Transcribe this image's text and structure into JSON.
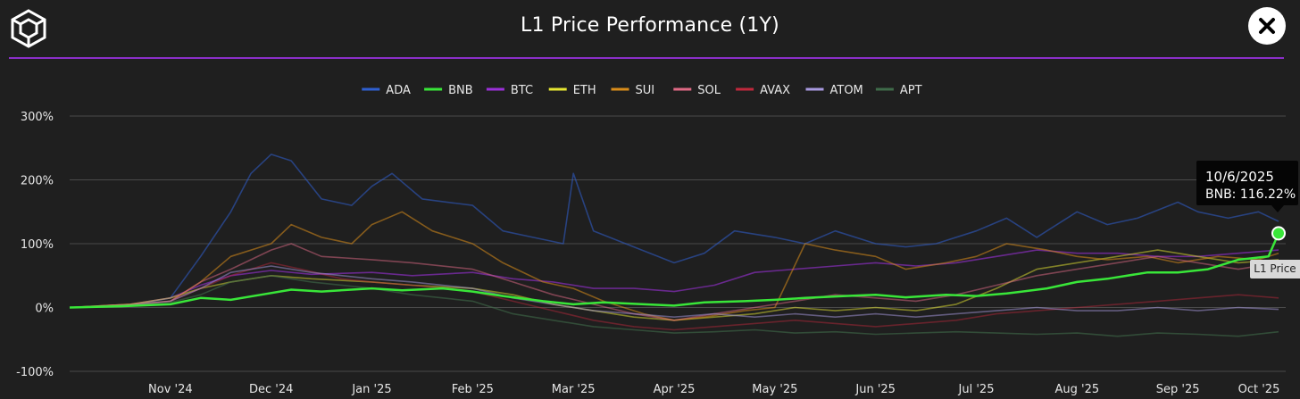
{
  "header": {
    "title": "L1 Price Performance (1Y)",
    "logo_icon": "cube-logo-icon",
    "close_icon": "close-icon"
  },
  "tooltip": {
    "date": "10/6/2025",
    "value": "BNB: 116.22%"
  },
  "series_tag": "L1 Price",
  "colors": {
    "background": "#1f1f1f",
    "divider": "#8b2fc9",
    "grid": "#4a4a4a"
  },
  "chart_data": {
    "type": "line",
    "title": "L1 Price Performance (1Y)",
    "xlabel": "",
    "ylabel": "",
    "ylim": [
      -100,
      300
    ],
    "yticks": [
      "300%",
      "200%",
      "100%",
      "0%",
      "-100%"
    ],
    "ytick_values": [
      300,
      200,
      100,
      0,
      -100
    ],
    "grid": true,
    "legend_position": "top-center",
    "x_domain": [
      0,
      12
    ],
    "x_ticks": [
      {
        "label": "Nov '24",
        "x": 1
      },
      {
        "label": "Dec '24",
        "x": 2
      },
      {
        "label": "Jan '25",
        "x": 3
      },
      {
        "label": "Feb '25",
        "x": 4
      },
      {
        "label": "Mar '25",
        "x": 5
      },
      {
        "label": "Apr '25",
        "x": 6
      },
      {
        "label": "May '25",
        "x": 7
      },
      {
        "label": "Jun '25",
        "x": 8
      },
      {
        "label": "Jul '25",
        "x": 9
      },
      {
        "label": "Aug '25",
        "x": 10
      },
      {
        "label": "Sep '25",
        "x": 11
      },
      {
        "label": "Oct '25",
        "x": 12
      }
    ],
    "series": [
      {
        "name": "ADA",
        "color": "#2f5fd0",
        "opacity": 0.55,
        "points": [
          [
            0,
            0
          ],
          [
            0.6,
            3
          ],
          [
            1,
            15
          ],
          [
            1.3,
            80
          ],
          [
            1.6,
            150
          ],
          [
            1.8,
            210
          ],
          [
            2,
            240
          ],
          [
            2.2,
            230
          ],
          [
            2.5,
            170
          ],
          [
            2.8,
            160
          ],
          [
            3,
            190
          ],
          [
            3.2,
            210
          ],
          [
            3.5,
            170
          ],
          [
            4,
            160
          ],
          [
            4.3,
            120
          ],
          [
            4.6,
            110
          ],
          [
            4.9,
            100
          ],
          [
            5,
            210
          ],
          [
            5.2,
            120
          ],
          [
            5.6,
            95
          ],
          [
            6,
            70
          ],
          [
            6.3,
            85
          ],
          [
            6.6,
            120
          ],
          [
            7,
            110
          ],
          [
            7.3,
            100
          ],
          [
            7.6,
            120
          ],
          [
            8,
            100
          ],
          [
            8.3,
            95
          ],
          [
            8.6,
            100
          ],
          [
            9,
            120
          ],
          [
            9.3,
            140
          ],
          [
            9.6,
            110
          ],
          [
            10,
            150
          ],
          [
            10.3,
            130
          ],
          [
            10.6,
            140
          ],
          [
            11,
            165
          ],
          [
            11.2,
            150
          ],
          [
            11.5,
            140
          ],
          [
            11.8,
            150
          ],
          [
            12,
            135
          ]
        ]
      },
      {
        "name": "BNB",
        "color": "#39e639",
        "opacity": 1,
        "width": 2.5,
        "points": [
          [
            0,
            0
          ],
          [
            0.5,
            2
          ],
          [
            1,
            5
          ],
          [
            1.3,
            15
          ],
          [
            1.6,
            12
          ],
          [
            1.9,
            20
          ],
          [
            2.2,
            28
          ],
          [
            2.5,
            25
          ],
          [
            3,
            30
          ],
          [
            3.3,
            27
          ],
          [
            3.7,
            30
          ],
          [
            4,
            25
          ],
          [
            4.3,
            18
          ],
          [
            4.7,
            10
          ],
          [
            5,
            5
          ],
          [
            5.3,
            8
          ],
          [
            5.7,
            5
          ],
          [
            6,
            3
          ],
          [
            6.3,
            8
          ],
          [
            6.7,
            10
          ],
          [
            7,
            12
          ],
          [
            7.3,
            15
          ],
          [
            7.7,
            18
          ],
          [
            8,
            20
          ],
          [
            8.3,
            16
          ],
          [
            8.7,
            20
          ],
          [
            9,
            18
          ],
          [
            9.3,
            22
          ],
          [
            9.7,
            30
          ],
          [
            10,
            40
          ],
          [
            10.3,
            45
          ],
          [
            10.7,
            55
          ],
          [
            11,
            55
          ],
          [
            11.3,
            60
          ],
          [
            11.6,
            75
          ],
          [
            11.9,
            80
          ],
          [
            12,
            116.22
          ]
        ]
      },
      {
        "name": "BTC",
        "color": "#9b30d9",
        "opacity": 0.6,
        "points": [
          [
            0,
            0
          ],
          [
            0.6,
            5
          ],
          [
            1,
            15
          ],
          [
            1.3,
            35
          ],
          [
            1.6,
            50
          ],
          [
            2,
            58
          ],
          [
            2.4,
            52
          ],
          [
            3,
            55
          ],
          [
            3.4,
            50
          ],
          [
            4,
            55
          ],
          [
            4.4,
            45
          ],
          [
            4.8,
            40
          ],
          [
            5.2,
            30
          ],
          [
            5.6,
            30
          ],
          [
            6,
            25
          ],
          [
            6.4,
            35
          ],
          [
            6.8,
            55
          ],
          [
            7.2,
            60
          ],
          [
            7.6,
            65
          ],
          [
            8,
            70
          ],
          [
            8.4,
            65
          ],
          [
            8.8,
            70
          ],
          [
            9.2,
            80
          ],
          [
            9.6,
            90
          ],
          [
            10,
            85
          ],
          [
            10.4,
            85
          ],
          [
            10.8,
            80
          ],
          [
            11.2,
            80
          ],
          [
            11.6,
            85
          ],
          [
            12,
            90
          ]
        ]
      },
      {
        "name": "ETH",
        "color": "#e6e632",
        "opacity": 0.5,
        "points": [
          [
            0,
            0
          ],
          [
            0.6,
            5
          ],
          [
            1,
            15
          ],
          [
            1.3,
            30
          ],
          [
            1.6,
            40
          ],
          [
            2,
            50
          ],
          [
            2.4,
            45
          ],
          [
            3,
            40
          ],
          [
            3.4,
            35
          ],
          [
            4,
            30
          ],
          [
            4.4,
            20
          ],
          [
            4.8,
            5
          ],
          [
            5.2,
            -5
          ],
          [
            5.6,
            -15
          ],
          [
            6,
            -20
          ],
          [
            6.4,
            -15
          ],
          [
            6.8,
            -10
          ],
          [
            7.2,
            0
          ],
          [
            7.6,
            -5
          ],
          [
            8,
            0
          ],
          [
            8.4,
            -5
          ],
          [
            8.8,
            5
          ],
          [
            9.2,
            30
          ],
          [
            9.6,
            60
          ],
          [
            10,
            70
          ],
          [
            10.4,
            80
          ],
          [
            10.8,
            90
          ],
          [
            11.2,
            80
          ],
          [
            11.6,
            70
          ],
          [
            12,
            75
          ]
        ]
      },
      {
        "name": "SUI",
        "color": "#d98c1a",
        "opacity": 0.55,
        "points": [
          [
            0,
            0
          ],
          [
            0.6,
            5
          ],
          [
            1,
            10
          ],
          [
            1.3,
            40
          ],
          [
            1.6,
            80
          ],
          [
            2,
            100
          ],
          [
            2.2,
            130
          ],
          [
            2.5,
            110
          ],
          [
            2.8,
            100
          ],
          [
            3,
            130
          ],
          [
            3.3,
            150
          ],
          [
            3.6,
            120
          ],
          [
            4,
            100
          ],
          [
            4.3,
            70
          ],
          [
            4.7,
            40
          ],
          [
            5,
            30
          ],
          [
            5.3,
            10
          ],
          [
            5.7,
            -10
          ],
          [
            6,
            -20
          ],
          [
            6.3,
            -15
          ],
          [
            6.7,
            -5
          ],
          [
            7,
            0
          ],
          [
            7.3,
            100
          ],
          [
            7.6,
            90
          ],
          [
            8,
            80
          ],
          [
            8.3,
            60
          ],
          [
            8.7,
            70
          ],
          [
            9,
            80
          ],
          [
            9.3,
            100
          ],
          [
            9.7,
            90
          ],
          [
            10,
            80
          ],
          [
            10.3,
            75
          ],
          [
            10.7,
            80
          ],
          [
            11,
            70
          ],
          [
            11.4,
            80
          ],
          [
            11.8,
            75
          ],
          [
            12,
            85
          ]
        ]
      },
      {
        "name": "SOL",
        "color": "#e06a85",
        "opacity": 0.5,
        "points": [
          [
            0,
            0
          ],
          [
            0.6,
            3
          ],
          [
            1,
            10
          ],
          [
            1.3,
            40
          ],
          [
            1.6,
            60
          ],
          [
            2,
            90
          ],
          [
            2.2,
            100
          ],
          [
            2.5,
            80
          ],
          [
            3,
            75
          ],
          [
            3.4,
            70
          ],
          [
            4,
            60
          ],
          [
            4.4,
            40
          ],
          [
            4.8,
            20
          ],
          [
            5.2,
            5
          ],
          [
            5.6,
            -10
          ],
          [
            6,
            -20
          ],
          [
            6.4,
            -10
          ],
          [
            6.8,
            0
          ],
          [
            7.2,
            10
          ],
          [
            7.6,
            20
          ],
          [
            8,
            15
          ],
          [
            8.4,
            10
          ],
          [
            8.8,
            20
          ],
          [
            9.2,
            35
          ],
          [
            9.6,
            50
          ],
          [
            10,
            60
          ],
          [
            10.4,
            70
          ],
          [
            10.8,
            80
          ],
          [
            11.2,
            70
          ],
          [
            11.6,
            60
          ],
          [
            12,
            70
          ]
        ]
      },
      {
        "name": "AVAX",
        "color": "#c0283c",
        "opacity": 0.45,
        "points": [
          [
            0,
            0
          ],
          [
            0.6,
            3
          ],
          [
            1,
            10
          ],
          [
            1.3,
            30
          ],
          [
            1.6,
            50
          ],
          [
            2,
            70
          ],
          [
            2.3,
            60
          ],
          [
            2.7,
            45
          ],
          [
            3,
            40
          ],
          [
            3.4,
            35
          ],
          [
            4,
            25
          ],
          [
            4.4,
            10
          ],
          [
            4.8,
            -5
          ],
          [
            5.2,
            -20
          ],
          [
            5.6,
            -30
          ],
          [
            6,
            -35
          ],
          [
            6.4,
            -30
          ],
          [
            6.8,
            -25
          ],
          [
            7.2,
            -20
          ],
          [
            7.6,
            -25
          ],
          [
            8,
            -30
          ],
          [
            8.4,
            -25
          ],
          [
            8.8,
            -20
          ],
          [
            9.2,
            -10
          ],
          [
            9.6,
            -5
          ],
          [
            10,
            0
          ],
          [
            10.4,
            5
          ],
          [
            10.8,
            10
          ],
          [
            11.2,
            15
          ],
          [
            11.6,
            20
          ],
          [
            12,
            15
          ]
        ]
      },
      {
        "name": "ATOM",
        "color": "#a89ae0",
        "opacity": 0.5,
        "points": [
          [
            0,
            0
          ],
          [
            0.6,
            4
          ],
          [
            1,
            10
          ],
          [
            1.3,
            30
          ],
          [
            1.6,
            55
          ],
          [
            2,
            65
          ],
          [
            2.4,
            55
          ],
          [
            3,
            45
          ],
          [
            3.4,
            40
          ],
          [
            4,
            30
          ],
          [
            4.4,
            15
          ],
          [
            4.8,
            5
          ],
          [
            5.2,
            -5
          ],
          [
            5.6,
            -10
          ],
          [
            6,
            -15
          ],
          [
            6.4,
            -10
          ],
          [
            6.8,
            -15
          ],
          [
            7.2,
            -10
          ],
          [
            7.6,
            -15
          ],
          [
            8,
            -10
          ],
          [
            8.4,
            -15
          ],
          [
            8.8,
            -10
          ],
          [
            9.2,
            -5
          ],
          [
            9.6,
            0
          ],
          [
            10,
            -5
          ],
          [
            10.4,
            -5
          ],
          [
            10.8,
            0
          ],
          [
            11.2,
            -5
          ],
          [
            11.6,
            0
          ],
          [
            12,
            -3
          ]
        ]
      },
      {
        "name": "APT",
        "color": "#3f6b4a",
        "opacity": 0.6,
        "points": [
          [
            0,
            0
          ],
          [
            0.6,
            3
          ],
          [
            1,
            8
          ],
          [
            1.3,
            20
          ],
          [
            1.6,
            40
          ],
          [
            2,
            50
          ],
          [
            2.4,
            40
          ],
          [
            3,
            30
          ],
          [
            3.4,
            20
          ],
          [
            4,
            10
          ],
          [
            4.4,
            -10
          ],
          [
            4.8,
            -20
          ],
          [
            5.2,
            -30
          ],
          [
            5.6,
            -35
          ],
          [
            6,
            -40
          ],
          [
            6.4,
            -38
          ],
          [
            6.8,
            -35
          ],
          [
            7.2,
            -40
          ],
          [
            7.6,
            -38
          ],
          [
            8,
            -42
          ],
          [
            8.4,
            -40
          ],
          [
            8.8,
            -38
          ],
          [
            9.2,
            -40
          ],
          [
            9.6,
            -42
          ],
          [
            10,
            -40
          ],
          [
            10.4,
            -45
          ],
          [
            10.8,
            -40
          ],
          [
            11.2,
            -42
          ],
          [
            11.6,
            -45
          ],
          [
            12,
            -38
          ]
        ]
      }
    ]
  }
}
